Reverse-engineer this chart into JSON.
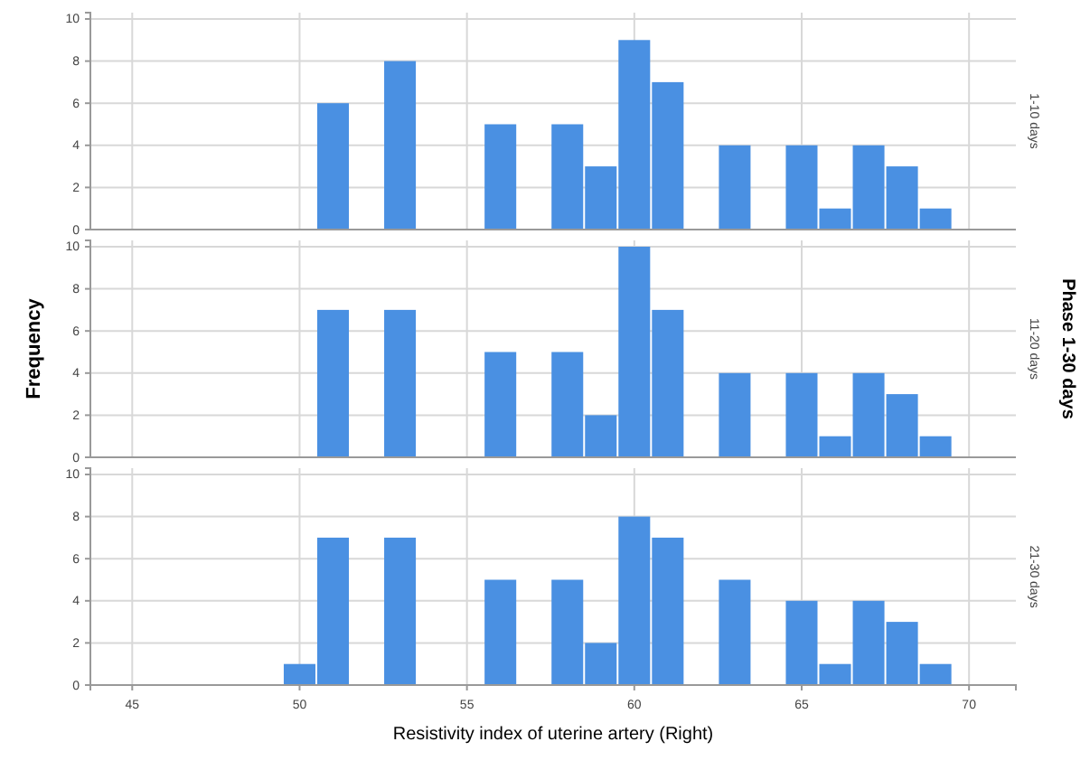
{
  "chart_data": [
    {
      "type": "histogram",
      "y2label": "1-10 days",
      "bins": [
        49.5,
        50.5,
        51.5,
        52.5,
        53.5,
        54.5,
        55.5,
        56.5,
        57.5,
        58.5,
        59.5,
        60.5,
        61.5,
        62.5,
        63.5,
        64.5,
        65.5,
        66.5,
        67.5,
        68.5,
        69.5
      ],
      "values": [
        0,
        6,
        0,
        8,
        0,
        0,
        5,
        0,
        5,
        3,
        9,
        7,
        0,
        4,
        0,
        4,
        1,
        4,
        3,
        1
      ],
      "color": "#4a90e2",
      "xlim": [
        43.75,
        71.4
      ],
      "xticks": [
        45,
        50,
        55,
        60,
        65,
        70
      ],
      "ylim": [
        0,
        10.3
      ],
      "yticks": [
        0,
        2,
        4,
        6,
        8,
        10
      ],
      "grid": true,
      "tick_labels": "y"
    },
    {
      "type": "histogram",
      "y2label": "11-20 days",
      "ylabel": "Frequency",
      "annotations": [
        "Phase 1-30 days"
      ],
      "bins": [
        49.5,
        50.5,
        51.5,
        52.5,
        53.5,
        54.5,
        55.5,
        56.5,
        57.5,
        58.5,
        59.5,
        60.5,
        61.5,
        62.5,
        63.5,
        64.5,
        65.5,
        66.5,
        67.5,
        68.5,
        69.5
      ],
      "values": [
        0,
        7,
        0,
        7,
        0,
        0,
        5,
        0,
        5,
        2,
        10,
        7,
        0,
        4,
        0,
        4,
        1,
        4,
        3,
        1
      ],
      "color": "#4a90e2",
      "xlim": [
        43.75,
        71.4
      ],
      "xticks": [
        45,
        50,
        55,
        60,
        65,
        70
      ],
      "ylim": [
        0,
        10.3
      ],
      "yticks": [
        0,
        2,
        4,
        6,
        8,
        10
      ],
      "grid": true,
      "tick_labels": "y"
    },
    {
      "type": "histogram",
      "y2label": "21-30 days",
      "xlabel": "Resistivity index of uterine artery (Right)",
      "bins": [
        49.5,
        50.5,
        51.5,
        52.5,
        53.5,
        54.5,
        55.5,
        56.5,
        57.5,
        58.5,
        59.5,
        60.5,
        61.5,
        62.5,
        63.5,
        64.5,
        65.5,
        66.5,
        67.5,
        68.5,
        69.5
      ],
      "values": [
        1,
        7,
        0,
        7,
        0,
        0,
        5,
        0,
        5,
        2,
        8,
        7,
        0,
        5,
        0,
        4,
        1,
        4,
        3,
        1
      ],
      "color": "#4a90e2",
      "xlim": [
        43.75,
        71.4
      ],
      "xticks": [
        45,
        50,
        55,
        60,
        65,
        70
      ],
      "ylim": [
        0,
        10.3
      ],
      "yticks": [
        0,
        2,
        4,
        6,
        8,
        10
      ],
      "grid": true
    }
  ]
}
